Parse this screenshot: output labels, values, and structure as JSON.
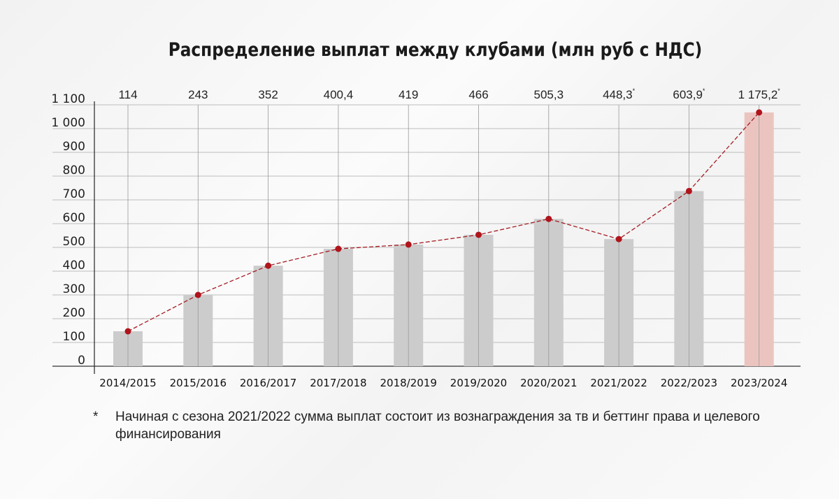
{
  "chart_data": {
    "type": "bar",
    "title": "Распределение выплат между клубами (млн руб с НДС)",
    "categories": [
      "2014/2015",
      "2015/2016",
      "2016/2017",
      "2017/2018",
      "2018/2019",
      "2019/2020",
      "2020/2021",
      "2021/2022",
      "2022/2023",
      "2023/2024"
    ],
    "value_labels": [
      "114",
      "243",
      "352",
      "400,4",
      "419",
      "466",
      "505,3",
      "448,3",
      "603,9",
      "1 175,2"
    ],
    "values": [
      114,
      243,
      352,
      400.4,
      419,
      466,
      505.3,
      448.3,
      603.9,
      1175.2
    ],
    "footnote_marked": [
      false,
      false,
      false,
      false,
      false,
      false,
      false,
      true,
      true,
      true
    ],
    "plotted_heights_axis_units": [
      147,
      300,
      423,
      494,
      512,
      553,
      620,
      535,
      737,
      1068
    ],
    "yticks": [
      "0",
      "100",
      "200",
      "300",
      "400",
      "500",
      "600",
      "700",
      "800",
      "900",
      "1 000",
      "1 100"
    ],
    "ylim": [
      0,
      1100
    ],
    "grid": true,
    "overlay": "dashed line with markers through bar tops",
    "colors": {
      "bar": "#cccccc",
      "highlight_bar": "#ebc4c0",
      "line": "#a51d24",
      "marker": "#b0141c"
    }
  },
  "footnote": {
    "marker": "*",
    "text": "Начиная с сезона 2021/2022 сумма выплат состоит из вознаграждения за тв и беттинг права и целевого финансирования"
  }
}
